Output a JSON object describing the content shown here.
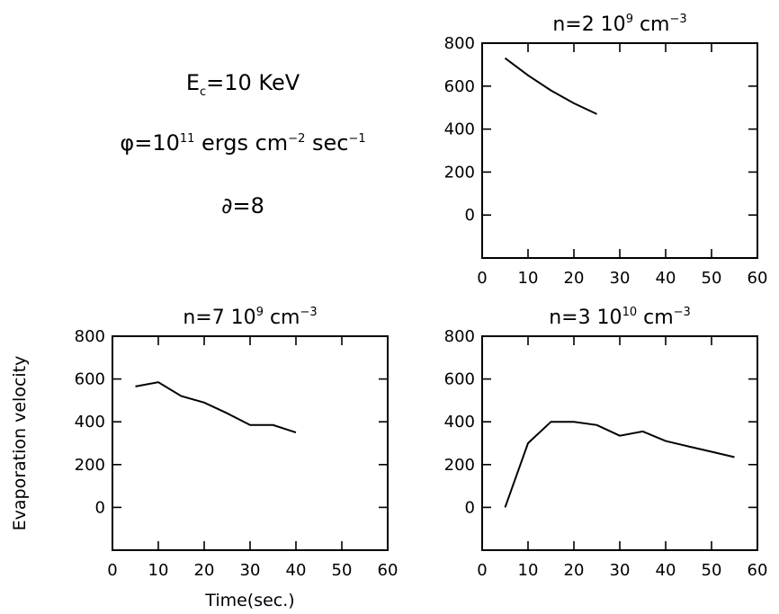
{
  "annotations": {
    "energy": {
      "symbol": "E",
      "sub": "c",
      "text": "=10 KeV"
    },
    "flux": {
      "symbol": "φ",
      "text1": "=10",
      "sup1": "11",
      "text2": " ergs cm",
      "sup2": "−2",
      "text3": " sec",
      "sup3": "−1"
    },
    "delta": {
      "symbol": "∂",
      "text": "=8"
    }
  },
  "chart_data": [
    {
      "type": "line",
      "title_base": "n=2  10",
      "title_exp": "9",
      "title_unit": " cm",
      "title_unit_exp": "−3",
      "xlabel": "",
      "ylabel": "",
      "xlim": [
        0,
        60
      ],
      "ylim": [
        -200,
        800
      ],
      "xticks": [
        0,
        10,
        20,
        30,
        40,
        50,
        60
      ],
      "yticks": [
        0,
        200,
        400,
        600,
        800
      ],
      "series": [
        {
          "x": [
            5,
            10,
            15,
            20,
            25
          ],
          "y": [
            730,
            650,
            580,
            520,
            470
          ]
        }
      ]
    },
    {
      "type": "line",
      "title_base": "n=7  10",
      "title_exp": "9",
      "title_unit": " cm",
      "title_unit_exp": "−3",
      "xlabel": "Time(sec.)",
      "ylabel": "Evaporation velocity",
      "xlim": [
        0,
        60
      ],
      "ylim": [
        -200,
        800
      ],
      "xticks": [
        0,
        10,
        20,
        30,
        40,
        50,
        60
      ],
      "yticks": [
        0,
        200,
        400,
        600,
        800
      ],
      "series": [
        {
          "x": [
            5,
            10,
            15,
            20,
            25,
            30,
            35,
            40
          ],
          "y": [
            565,
            585,
            520,
            490,
            440,
            385,
            385,
            350
          ]
        }
      ]
    },
    {
      "type": "line",
      "title_base": "n=3  10",
      "title_exp": "10",
      "title_unit": " cm",
      "title_unit_exp": "−3",
      "xlabel": "",
      "ylabel": "",
      "xlim": [
        0,
        60
      ],
      "ylim": [
        -200,
        800
      ],
      "xticks": [
        0,
        10,
        20,
        30,
        40,
        50,
        60
      ],
      "yticks": [
        0,
        200,
        400,
        600,
        800
      ],
      "series": [
        {
          "x": [
            5,
            10,
            15,
            20,
            25,
            30,
            35,
            40,
            45,
            50,
            55
          ],
          "y": [
            0,
            300,
            400,
            400,
            385,
            335,
            355,
            310,
            285,
            260,
            235
          ]
        }
      ]
    }
  ]
}
